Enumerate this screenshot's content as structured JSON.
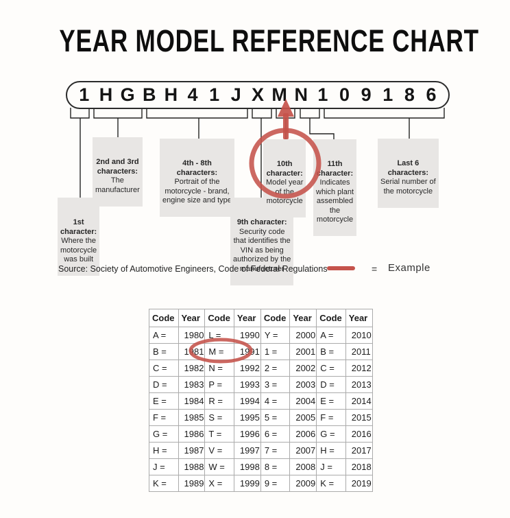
{
  "title": "YEAR MODEL REFERENCE CHART",
  "vin": {
    "chars": [
      "1",
      "H",
      "G",
      "B",
      "H",
      "4",
      "1",
      "J",
      "X",
      "M",
      "N",
      "1",
      "0",
      "9",
      "1",
      "8",
      "6"
    ]
  },
  "callouts": {
    "c1": {
      "header": "1st\ncharacter:",
      "body": "Where the\nmotorcycle\nwas built"
    },
    "c23": {
      "header": "2nd and 3rd\ncharacters:",
      "body": "The\nmanufacturer"
    },
    "c48": {
      "header": "4th - 8th\ncharacters:",
      "body": "Portrait of the\nmotorcycle - brand,\nengine size and type"
    },
    "c9": {
      "header": "9th character:",
      "body": "Security code\nthat identifies the\nVIN as being\nauthorized by the\nmanufacturer"
    },
    "c10": {
      "header": "10th\ncharacter:",
      "body": "Model year\nof the\nmotorcycle"
    },
    "c11": {
      "header": "11th\ncharacter:",
      "body": "Indicates\nwhich plant\nassembled\nthe\nmotorcycle"
    },
    "cl6": {
      "header": "Last 6\ncharacters:",
      "body": "Serial number of\nthe motorcycle"
    }
  },
  "source_note": "Source:  Society of Automotive Engineers, Code of Federal Regulations",
  "legend": {
    "equals": "=",
    "label": "Example"
  },
  "colors": {
    "example_red": "#c5534b",
    "line_black": "#222222"
  },
  "table": {
    "headers": [
      "Code",
      "Year",
      "Code",
      "Year",
      "Code",
      "Year",
      "Code",
      "Year"
    ],
    "rows": [
      [
        "A =",
        "1980",
        "L =",
        "1990",
        "Y =",
        "2000",
        "A =",
        "2010"
      ],
      [
        "B =",
        "1981",
        "M =",
        "1991",
        "1 =",
        "2001",
        "B =",
        "2011"
      ],
      [
        "C =",
        "1982",
        "N =",
        "1992",
        "2 =",
        "2002",
        "C =",
        "2012"
      ],
      [
        "D =",
        "1983",
        "P =",
        "1993",
        "3 =",
        "2003",
        "D =",
        "2013"
      ],
      [
        "E =",
        "1984",
        "R =",
        "1994",
        "4 =",
        "2004",
        "E =",
        "2014"
      ],
      [
        "F =",
        "1985",
        "S =",
        "1995",
        "5 =",
        "2005",
        "F =",
        "2015"
      ],
      [
        "G =",
        "1986",
        "T =",
        "1996",
        "6 =",
        "2006",
        "G =",
        "2016"
      ],
      [
        "H =",
        "1987",
        "V =",
        "1997",
        "7 =",
        "2007",
        "H =",
        "2017"
      ],
      [
        "J =",
        "1988",
        "W =",
        "1998",
        "8 =",
        "2008",
        "J =",
        "2018"
      ],
      [
        "K =",
        "1989",
        "X =",
        "1999",
        "9 =",
        "2009",
        "K =",
        "2019"
      ]
    ]
  }
}
